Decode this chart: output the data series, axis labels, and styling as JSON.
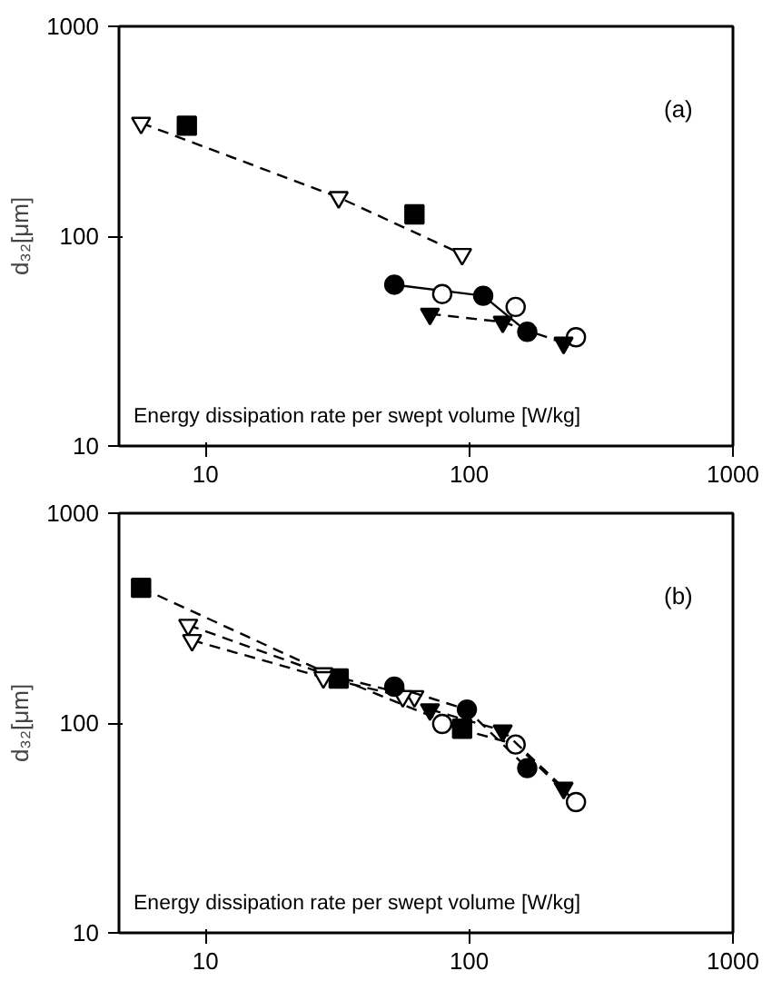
{
  "chart_data": [
    {
      "type": "scatter",
      "ylabel": "d₃₂[μm]",
      "xlabel": "Energy dissipation rate per swept volume [W/kg]",
      "annotations": [
        "(a)"
      ],
      "log": "xy",
      "grid": false,
      "xlim": [
        4.7,
        1000
      ],
      "xticks": [
        10,
        100,
        1000
      ],
      "ylim": [
        10,
        1000
      ],
      "yticks": [
        10,
        100,
        1000
      ],
      "series": [
        {
          "type": "line",
          "marker": "triangle",
          "line_style": "dashed",
          "color": "#ffffff",
          "x": [
            5.7,
            32,
            94
          ],
          "values": [
            346,
            153,
            82
          ]
        },
        {
          "marker": "square",
          "color": "#000000",
          "x": [
            8.5,
            62
          ],
          "values": [
            336,
            127
          ]
        },
        {
          "type": "line",
          "marker": "circle",
          "line_style": "solid",
          "color": "#000000",
          "x": [
            52,
            113,
            166
          ],
          "values": [
            58.7,
            52,
            35
          ]
        },
        {
          "marker": "circle",
          "color": "#ffffff",
          "x": [
            79,
            150,
            254
          ],
          "values": [
            53,
            46,
            33
          ]
        },
        {
          "type": "line",
          "marker": "triangle",
          "line_style": "dashed",
          "color": "#000000",
          "x": [
            71,
            134,
            228
          ],
          "values": [
            42.6,
            39,
            31
          ]
        }
      ]
    },
    {
      "type": "line",
      "ylabel": "d₃₂[μm]",
      "xlabel": "Energy dissipation rate per swept volume [W/kg]",
      "annotations": [
        "(b)"
      ],
      "log": "xy",
      "grid": false,
      "line_style": "dashed",
      "xlim": [
        4.7,
        1000
      ],
      "xticks": [
        10,
        100,
        1000
      ],
      "ylim": [
        10,
        1000
      ],
      "yticks": [
        10,
        100,
        1000
      ],
      "series": [
        {
          "marker": "square",
          "color": "#000000",
          "x": [
            5.7,
            32,
            94
          ],
          "values": [
            441,
            163,
            94
          ]
        },
        {
          "marker": "triangle",
          "color": "#ffffff",
          "x": [
            8.6,
            28,
            62
          ],
          "values": [
            293,
            172,
            134
          ]
        },
        {
          "marker": "triangle",
          "color": "#ffffff",
          "x": [
            8.9,
            28,
            56
          ],
          "values": [
            248,
            165,
            134
          ]
        },
        {
          "marker": "circle",
          "color": "#000000",
          "x": [
            52,
            98,
            166
          ],
          "values": [
            149,
            116,
            61
          ]
        },
        {
          "marker": "circle",
          "color": "#ffffff",
          "x": [
            79,
            150,
            254
          ],
          "values": [
            99,
            79,
            42
          ]
        },
        {
          "marker": "triangle",
          "color": "#000000",
          "x": [
            71,
            134,
            228
          ],
          "values": [
            116,
            92,
            49
          ]
        }
      ]
    }
  ]
}
